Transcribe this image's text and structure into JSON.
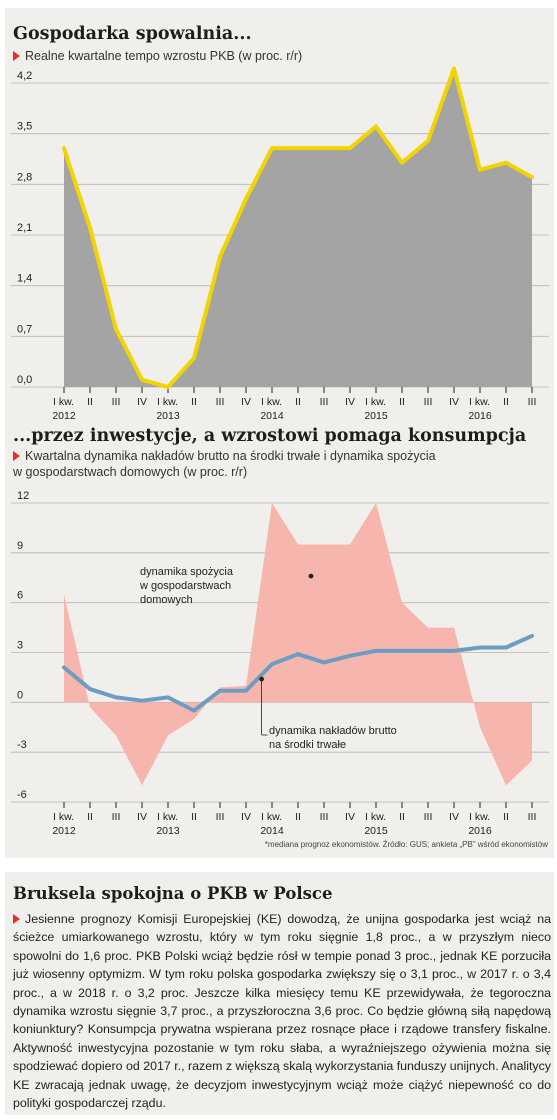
{
  "top": {
    "title": "Gospodarka spowalnia...",
    "subtitle": "Realne kwartalne tempo wzrostu PKB (w proc. r/r)"
  },
  "middle": {
    "title": "...przez inwestycje, a wzrostowi pomaga konsumpcja",
    "subtitle_line1": "Kwartalna dynamika nakładów brutto na środki trwałe i dynamika spożycia",
    "subtitle_line2": "w gospodarstwach domowych (w proc. r/r)"
  },
  "source_note": "*mediana prognoz ekonomistów. Źródło: GUS; ankieta „PB” wśród ekonomistów",
  "article": {
    "title": "Bruksela spokojna o PKB w Polsce",
    "text": "Jesienne prognozy Komisji Europejskiej (KE) dowodzą, że unijna gospodarka jest wciąż na ścieżce umiarkowanego wzrostu, który w tym roku sięgnie 1,8 proc., a w przyszłym nieco spowolni do 1,6 proc. PKB Polski wciąż będzie rósł w tempie ponad 3 proc., jednak KE porzuciła już wiosenny optymizm. W tym roku polska gospodarka zwiększy się o 3,1 proc., w 2017 r. o 3,4 proc., a w 2018 r. o 3,2 proc. Jeszcze kilka miesięcy temu KE przewidywała, że tegoroczna dynamika wzrostu sięgnie 3,7 proc., a przyszłoroczna 3,6 proc. Co będzie główną siłą napędową koniunktury? Konsumpcja prywatna wspierana przez rosnące płace i rządowe transfery fiskalne. Aktywność inwestycyjna pozostanie w tym roku słaba, a wyraźniejszego ożywienia można się spodziewać dopiero od 2017 r., razem z większą skalą wykorzystania funduszy unijnych. Analitycy KE zwracają jednak uwagę, że decyzjom inwestycyjnym wciąż może ciążyć niepewność co do polityki gospodarczej rządu."
  },
  "chart_data": [
    {
      "type": "area",
      "title": "Gospodarka spowalnia...",
      "subtitle": "Realne kwartalne tempo wzrostu PKB (w proc. r/r)",
      "categories": [
        "I kw.",
        "II",
        "III",
        "IV",
        "I kw.",
        "II",
        "III",
        "IV",
        "I kw.",
        "II",
        "III",
        "IV",
        "I kw.",
        "II",
        "III",
        "IV",
        "I kw.",
        "II",
        "III"
      ],
      "years": [
        {
          "label": "2012",
          "index": 0
        },
        {
          "label": "2013",
          "index": 4
        },
        {
          "label": "2014",
          "index": 8
        },
        {
          "label": "2015",
          "index": 12
        },
        {
          "label": "2016",
          "index": 16
        }
      ],
      "series": [
        {
          "values": [
            3.3,
            2.2,
            0.8,
            0.1,
            0.0,
            0.4,
            1.8,
            2.6,
            3.3,
            3.3,
            3.3,
            3.3,
            3.6,
            3.1,
            3.4,
            4.4,
            3.0,
            3.1,
            2.9
          ]
        }
      ],
      "yticks": [
        "4,2",
        "3,5",
        "2,8",
        "2,1",
        "1,4",
        "0,7",
        "0,0"
      ],
      "ylim": [
        0,
        4.2
      ],
      "grid": true,
      "colors": {
        "line": "#f2d500",
        "fill": "#a4a4a4",
        "grid": "#b5b5b5"
      }
    },
    {
      "type": "area",
      "title": "...przez inwestycje, a wzrostowi pomaga konsumpcja",
      "categories": [
        "I kw.",
        "II",
        "III",
        "IV",
        "I kw.",
        "II",
        "III",
        "IV",
        "I kw.",
        "II",
        "III",
        "IV",
        "I kw.",
        "II",
        "III",
        "IV",
        "I kw.",
        "II",
        "III"
      ],
      "years": [
        {
          "label": "2012",
          "index": 0
        },
        {
          "label": "2013",
          "index": 4
        },
        {
          "label": "2014",
          "index": 8
        },
        {
          "label": "2015",
          "index": 12
        },
        {
          "label": "2016",
          "index": 16
        }
      ],
      "series": [
        {
          "name": "dynamika nakładów brutto na środki trwałe",
          "kind": "area",
          "values": [
            6.5,
            -0.3,
            -2.0,
            -5.0,
            -2.0,
            -1.0,
            0.9,
            1.0,
            12.0,
            9.5,
            9.5,
            9.5,
            12.0,
            6.0,
            4.5,
            4.5,
            -1.5,
            -5.0,
            -3.5
          ]
        },
        {
          "name": "dynamika spożycia w gospodarstwach domowych",
          "kind": "line",
          "values": [
            2.1,
            0.8,
            0.3,
            0.1,
            0.3,
            -0.5,
            0.7,
            0.7,
            2.3,
            2.9,
            2.4,
            2.8,
            3.1,
            3.1,
            3.1,
            3.1,
            3.3,
            3.3,
            4.0
          ]
        }
      ],
      "yticks": [
        "12",
        "9",
        "6",
        "3",
        "0",
        "-3",
        "-6"
      ],
      "ylim": [
        -6,
        12
      ],
      "grid": true,
      "annotations": [
        {
          "label": "dynamika spożycia\nw gospodarstwach\ndomowych",
          "series": 1,
          "index": 9
        },
        {
          "label": "dynamika nakładów brutto\nna środki trwałe",
          "series": 0,
          "index": 7
        }
      ],
      "colors": {
        "line": "#6d9dc0",
        "fill": "#f7b6ad",
        "grid": "#b5b5b5"
      }
    }
  ]
}
